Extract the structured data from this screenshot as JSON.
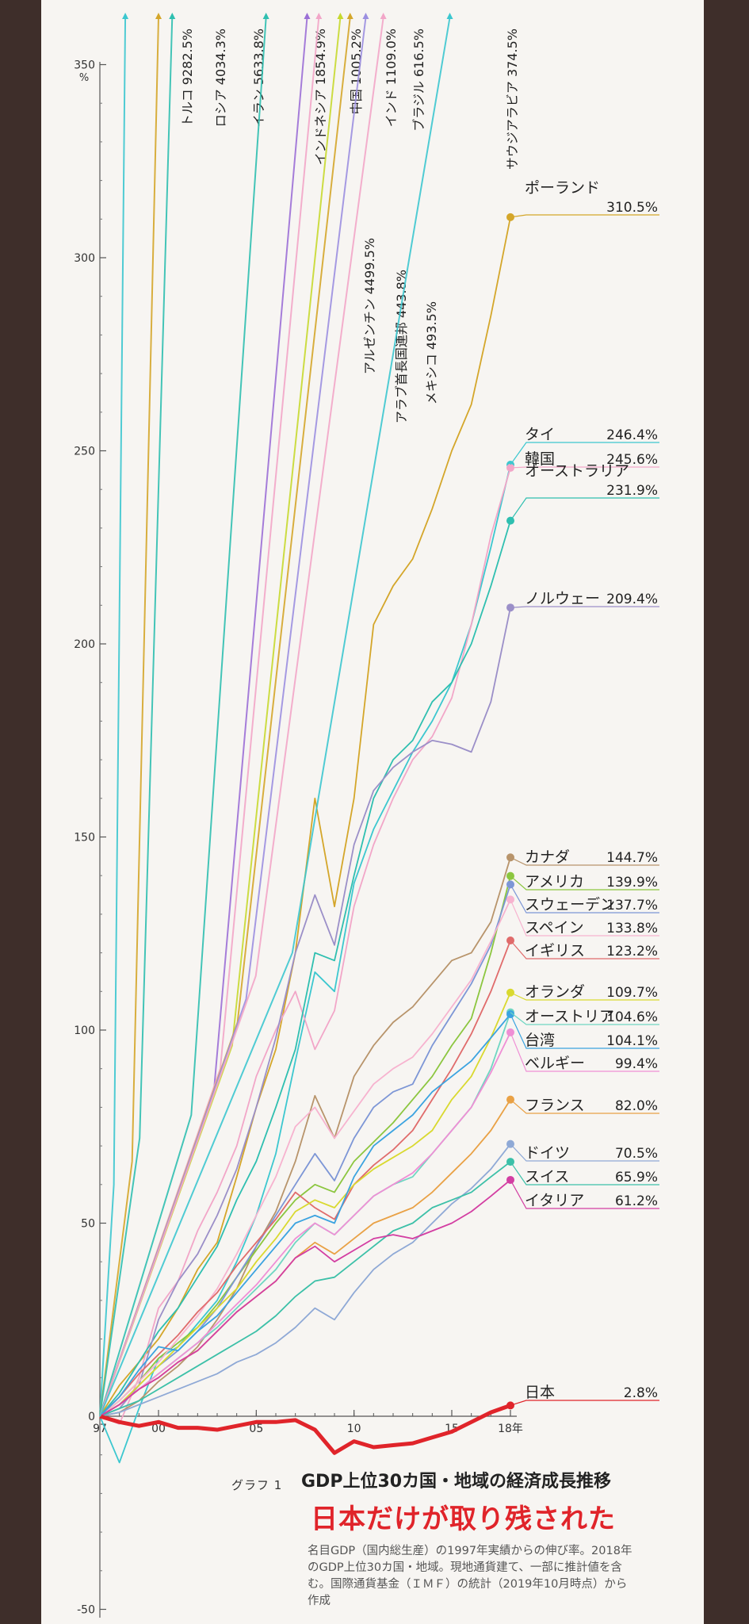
{
  "chart_data": {
    "type": "line",
    "ylabel": "%",
    "yticks": [
      -50,
      0,
      50,
      100,
      150,
      200,
      250,
      300,
      350
    ],
    "ylim": [
      -50,
      350
    ],
    "x": [
      1997,
      1998,
      1999,
      2000,
      2001,
      2002,
      2003,
      2004,
      2005,
      2006,
      2007,
      2008,
      2009,
      2010,
      2011,
      2012,
      2013,
      2014,
      2015,
      2016,
      2017,
      2018
    ],
    "xticks": [
      {
        "value": 1997,
        "label": "97"
      },
      {
        "value": 2000,
        "label": "00"
      },
      {
        "value": 2005,
        "label": "05"
      },
      {
        "value": 2010,
        "label": "10"
      },
      {
        "value": 2015,
        "label": "15"
      },
      {
        "value": 2018,
        "label": "18年"
      }
    ],
    "series": [
      {
        "name": "ポーランド",
        "value_label": "310.5%",
        "color": "#d4a62a",
        "values": [
          0,
          8,
          14,
          20,
          28,
          38,
          45,
          62,
          80,
          95,
          120,
          160,
          132,
          160,
          205,
          215,
          222,
          235,
          250,
          262,
          285,
          310.5
        ]
      },
      {
        "name": "タイ",
        "value_label": "246.4%",
        "color": "#3cc7cf",
        "values": [
          0,
          -12,
          2,
          15,
          18,
          24,
          30,
          40,
          52,
          68,
          92,
          115,
          110,
          138,
          152,
          162,
          172,
          180,
          190,
          205,
          225,
          246.4
        ]
      },
      {
        "name": "韓国",
        "value_label": "245.6%",
        "color": "#f2a6c8",
        "values": [
          0,
          -2,
          10,
          28,
          35,
          48,
          58,
          70,
          88,
          100,
          110,
          95,
          105,
          132,
          148,
          160,
          170,
          176,
          186,
          205,
          228,
          245.6
        ]
      },
      {
        "name": "オーストラリア",
        "value_label": "231.9%",
        "color": "#2fbfb0",
        "values": [
          0,
          6,
          14,
          22,
          28,
          36,
          44,
          56,
          66,
          80,
          95,
          120,
          118,
          140,
          160,
          170,
          175,
          185,
          190,
          200,
          215,
          231.9
        ]
      },
      {
        "name": "ノルウェー",
        "value_label": "209.4%",
        "color": "#9b8fc8",
        "values": [
          0,
          2,
          8,
          25,
          35,
          42,
          52,
          64,
          80,
          98,
          120,
          135,
          122,
          148,
          162,
          168,
          172,
          175,
          174,
          172,
          185,
          209.4
        ]
      },
      {
        "name": "カナダ",
        "value_label": "144.7%",
        "color": "#b8946b",
        "values": [
          0,
          1,
          4,
          9,
          13,
          18,
          25,
          33,
          44,
          53,
          66,
          83,
          72,
          88,
          96,
          102,
          106,
          112,
          118,
          120,
          128,
          144.7
        ]
      },
      {
        "name": "アメリカ",
        "value_label": "139.9%",
        "color": "#8cc63f",
        "values": [
          0,
          4,
          9,
          15,
          19,
          23,
          29,
          36,
          43,
          50,
          56,
          60,
          58,
          66,
          71,
          76,
          82,
          88,
          96,
          103,
          120,
          139.9
        ]
      },
      {
        "name": "スウェーデン",
        "value_label": "137.7%",
        "color": "#7d96d6",
        "values": [
          0,
          3,
          8,
          13,
          17,
          22,
          28,
          36,
          44,
          52,
          60,
          68,
          61,
          72,
          80,
          84,
          86,
          96,
          104,
          112,
          122,
          137.7
        ]
      },
      {
        "name": "スペイン",
        "value_label": "133.8%",
        "color": "#f7b3cf",
        "values": [
          0,
          4,
          9,
          14,
          20,
          26,
          33,
          42,
          52,
          62,
          75,
          80,
          72,
          79,
          86,
          90,
          93,
          99,
          106,
          113,
          123,
          133.8
        ]
      },
      {
        "name": "イギリス",
        "value_label": "123.2%",
        "color": "#e06b6b",
        "values": [
          0,
          5,
          11,
          16,
          21,
          27,
          32,
          39,
          45,
          51,
          58,
          54,
          51,
          60,
          65,
          69,
          74,
          82,
          90,
          99,
          110,
          123.2
        ]
      },
      {
        "name": "オランダ",
        "value_label": "109.7%",
        "color": "#d9d92f",
        "values": [
          0,
          3,
          8,
          13,
          18,
          23,
          28,
          33,
          40,
          46,
          53,
          56,
          54,
          60,
          64,
          67,
          70,
          74,
          82,
          88,
          98,
          109.7
        ]
      },
      {
        "name": "オーストリア",
        "value_label": "104.6%",
        "color": "#6fd6c2",
        "values": [
          0,
          3,
          7,
          11,
          15,
          19,
          23,
          28,
          33,
          38,
          45,
          50,
          47,
          52,
          57,
          60,
          62,
          68,
          74,
          80,
          90,
          104.6
        ]
      },
      {
        "name": "台湾",
        "value_label": "104.1%",
        "color": "#3ba3e0",
        "values": [
          0,
          5,
          12,
          18,
          17,
          22,
          26,
          32,
          38,
          44,
          50,
          52,
          50,
          62,
          70,
          74,
          78,
          84,
          88,
          92,
          98,
          104.1
        ]
      },
      {
        "name": "ベルギー",
        "value_label": "99.4%",
        "color": "#ef8fd5",
        "values": [
          0,
          3,
          7,
          11,
          15,
          19,
          24,
          29,
          34,
          40,
          46,
          50,
          47,
          52,
          57,
          60,
          63,
          68,
          74,
          80,
          89,
          99.4
        ]
      },
      {
        "name": "フランス",
        "value_label": "82.0%",
        "color": "#e9a145",
        "values": [
          0,
          3,
          7,
          10,
          14,
          17,
          22,
          27,
          31,
          35,
          41,
          45,
          42,
          46,
          50,
          52,
          54,
          58,
          63,
          68,
          74,
          82.0
        ]
      },
      {
        "name": "ドイツ",
        "value_label": "70.5%",
        "color": "#8fa9d6",
        "values": [
          0,
          1,
          3,
          5,
          7,
          9,
          11,
          14,
          16,
          19,
          23,
          28,
          25,
          32,
          38,
          42,
          45,
          50,
          55,
          59,
          64,
          70.5
        ]
      },
      {
        "name": "スイス",
        "value_label": "65.9%",
        "color": "#3cc0a8",
        "values": [
          0,
          2,
          4,
          7,
          10,
          13,
          16,
          19,
          22,
          26,
          31,
          35,
          36,
          40,
          44,
          48,
          50,
          54,
          56,
          58,
          62,
          65.9
        ]
      },
      {
        "name": "イタリア",
        "value_label": "61.2%",
        "color": "#d33ea2",
        "values": [
          0,
          3,
          7,
          10,
          14,
          17,
          22,
          27,
          31,
          35,
          41,
          44,
          40,
          43,
          46,
          47,
          46,
          48,
          50,
          53,
          57,
          61.2
        ]
      },
      {
        "name": "日本",
        "value_label": "2.8%",
        "color": "#e0242a",
        "values": [
          0,
          -1.5,
          -2.5,
          -1.5,
          -3,
          -3,
          -3.5,
          -2.5,
          -1.5,
          -1.5,
          -1,
          -3.5,
          -9.5,
          -6.5,
          -8,
          -7.5,
          -7,
          -5.5,
          -4,
          -1.5,
          1,
          2.8
        ]
      }
    ],
    "off_scale": [
      {
        "name": "トルコ",
        "value_label": "9282.5%",
        "color": "#3cc7cf"
      },
      {
        "name": "ロシア",
        "value_label": "4034.3%",
        "color": "#d4a62a"
      },
      {
        "name": "イラン",
        "value_label": "5633.8%",
        "color": "#2fbfb0"
      },
      {
        "name": "インドネシア",
        "value_label": "1854.9%",
        "color": "#2fbfb0"
      },
      {
        "name": "中国",
        "value_label": "1005.2%",
        "color": "#9b6fd6"
      },
      {
        "name": "インド",
        "value_label": "1109.0%",
        "color": "#f2a6c8"
      },
      {
        "name": "ブラジル",
        "value_label": "616.5%",
        "color": "#c6d92f"
      },
      {
        "name": "アルゼンチン",
        "value_label": "4499.5%",
        "color": "#d4a62a"
      },
      {
        "name": "アラブ首長国連邦",
        "value_label": "443.8%",
        "color": "#9b8fe0"
      },
      {
        "name": "メキシコ",
        "value_label": "493.5%",
        "color": "#f2a6c8"
      },
      {
        "name": "サウジアラビア",
        "value_label": "374.5%",
        "color": "#3cc7cf"
      }
    ]
  },
  "caption": {
    "kicker": "グラフ 1",
    "title": "GDP上位30カ国・地域の経済成長推移",
    "headline": "日本だけが取り残された",
    "note": "名目GDP（国内総生産）の1997年実績からの伸び率。2018年のGDP上位30カ国・地域。現地通貨建て、一部に推計値を含む。国際通貨基金（ＩＭＦ）の統計（2019年10月時点）から作成"
  }
}
